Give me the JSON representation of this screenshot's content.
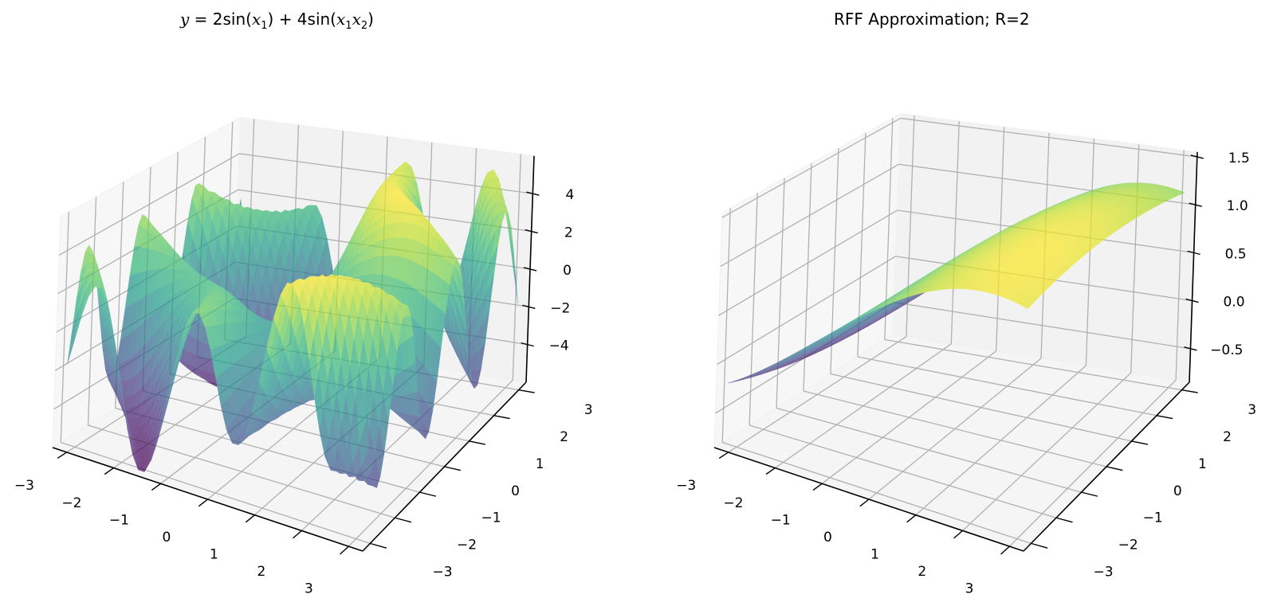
{
  "figure": {
    "background": "#ffffff",
    "pane_colors": {
      "left": "#f7f7f7",
      "right": "#f2f2f2",
      "floor": "#f5f5f5"
    },
    "grid_color": "#b0b0b0",
    "axis_color": "#000000",
    "colormap": "viridis",
    "colormap_stops": [
      "#440154",
      "#482878",
      "#3e4989",
      "#31688e",
      "#26828e",
      "#1f9e89",
      "#35b779",
      "#6ece58",
      "#b5de2b",
      "#fde725"
    ],
    "surface_alpha": 0.7
  },
  "chart_data": [
    {
      "type": "surface3d",
      "title": "y = 2sin(x1) + 4sin(x1x2)",
      "title_parts": {
        "lhs": "y",
        "eq": " = 2sin(",
        "v1": "x",
        "s1": "1",
        "mid": ") + 4sin(",
        "v2": "x",
        "s2": "1",
        "v3": "x",
        "s3": "2",
        "end": ")"
      },
      "function": "2*sin(x1) + 4*sin(x1*x2)",
      "x_range": [
        -3.14,
        3.14
      ],
      "y_range": [
        -3.14,
        3.14
      ],
      "zlim": [
        -6,
        6
      ],
      "xticks": [
        -3,
        -2,
        -1,
        0,
        1,
        2,
        3
      ],
      "xtick_labels": [
        "−3",
        "−2",
        "−1",
        "0",
        "1",
        "2",
        "3"
      ],
      "yticks": [
        -3,
        -2,
        -1,
        0,
        1,
        2,
        3
      ],
      "ytick_labels": [
        "−3",
        "−2",
        "−1",
        "0",
        "1",
        "2",
        "3"
      ],
      "zticks": [
        -4,
        -2,
        0,
        2,
        4
      ],
      "ztick_labels": [
        "−4",
        "−2",
        "0",
        "2",
        "4"
      ],
      "xlabel": "",
      "ylabel": "",
      "zlabel": "",
      "grid": true
    },
    {
      "type": "surface3d",
      "title": "RFF Approximation; R=2",
      "function": "rff_approx (smooth: low at x1=-3, rising to max ~1.5 near x1≈3, x2≈0)",
      "x_range": [
        -3.14,
        3.14
      ],
      "y_range": [
        -3.14,
        3.14
      ],
      "zlim": [
        -0.85,
        1.55
      ],
      "xticks": [
        -3,
        -2,
        -1,
        0,
        1,
        2,
        3
      ],
      "xtick_labels": [
        "−3",
        "−2",
        "−1",
        "0",
        "1",
        "2",
        "3"
      ],
      "yticks": [
        -3,
        -2,
        -1,
        0,
        1,
        2,
        3
      ],
      "ytick_labels": [
        "−3",
        "−2",
        "−1",
        "0",
        "1",
        "2",
        "3"
      ],
      "zticks": [
        -0.5,
        0.0,
        0.5,
        1.0,
        1.5
      ],
      "ztick_labels": [
        "−0.5",
        "0.0",
        "0.5",
        "1.0",
        "1.5"
      ],
      "xlabel": "",
      "ylabel": "",
      "zlabel": "",
      "grid": true
    }
  ]
}
